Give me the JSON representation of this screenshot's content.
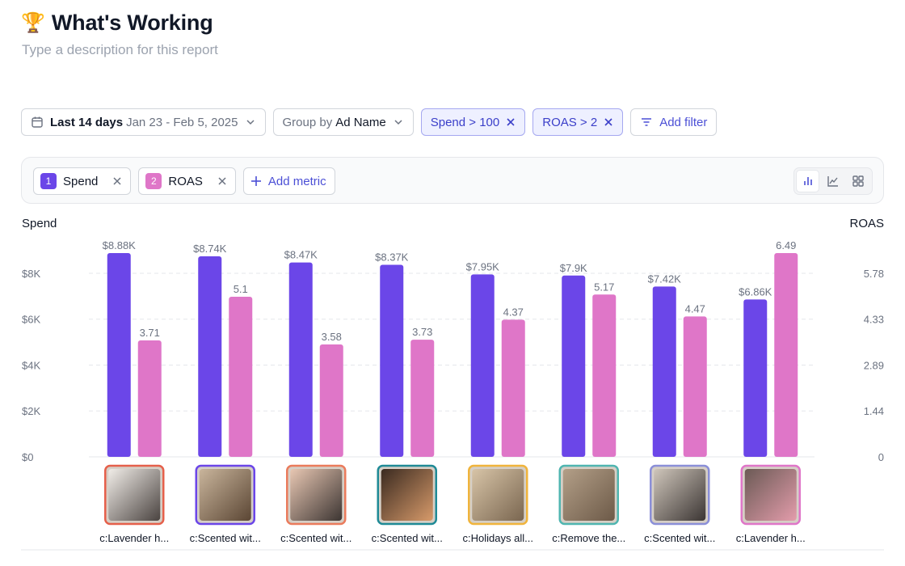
{
  "header": {
    "icon": "trophy-icon",
    "title": "What's Working",
    "description_placeholder": "Type a description for this report"
  },
  "filters": {
    "date_label": "Last 14 days",
    "date_range": "Jan 23 - Feb 5, 2025",
    "group_by_prefix": "Group by",
    "group_by_value": "Ad Name",
    "active_filters": [
      "Spend > 100",
      "ROAS > 2"
    ],
    "add_filter_label": "Add filter"
  },
  "metrics": {
    "items": [
      {
        "index": "1",
        "label": "Spend",
        "color": "#6b46e8"
      },
      {
        "index": "2",
        "label": "ROAS",
        "color": "#df76c8"
      }
    ],
    "add_metric_label": "Add metric",
    "views": [
      "bar-chart-icon",
      "line-chart-icon",
      "grid-icon"
    ],
    "active_view": "bar-chart-icon"
  },
  "colors": {
    "spend": "#6b46e8",
    "roas": "#df76c8",
    "accent": "#4b4fd6",
    "thumb_borders": [
      "#e5604b",
      "#6b46e8",
      "#ea7b5c",
      "#1f8a96",
      "#f0b43c",
      "#4fb5b0",
      "#8b8fd8",
      "#df76c8"
    ]
  },
  "chart_data": {
    "type": "bar",
    "left_axis_title": "Spend",
    "right_axis_title": "ROAS",
    "left_ticks": [
      "$0",
      "$2K",
      "$4K",
      "$6K",
      "$8K"
    ],
    "right_ticks": [
      "0",
      "1.44",
      "2.89",
      "4.33",
      "5.78"
    ],
    "ylim_left": [
      0,
      8880
    ],
    "ylim_right": [
      0,
      6.49
    ],
    "grid": true,
    "categories": [
      "c:Lavender h...",
      "c:Scented wit...",
      "c:Scented wit...",
      "c:Scented wit...",
      "c:Holidays all...",
      "c:Remove the...",
      "c:Scented wit...",
      "c:Lavender h..."
    ],
    "series": [
      {
        "name": "Spend",
        "axis": "left",
        "values": [
          8880,
          8740,
          8470,
          8370,
          7950,
          7900,
          7420,
          6860
        ],
        "labels": [
          "$8.88K",
          "$8.74K",
          "$8.47K",
          "$8.37K",
          "$7.95K",
          "$7.9K",
          "$7.42K",
          "$6.86K"
        ]
      },
      {
        "name": "ROAS",
        "axis": "right",
        "values": [
          3.71,
          5.1,
          3.58,
          3.73,
          4.37,
          5.17,
          4.47,
          6.49
        ],
        "labels": [
          "3.71",
          "5.1",
          "3.58",
          "3.73",
          "4.37",
          "5.17",
          "4.47",
          "6.49"
        ]
      }
    ]
  }
}
